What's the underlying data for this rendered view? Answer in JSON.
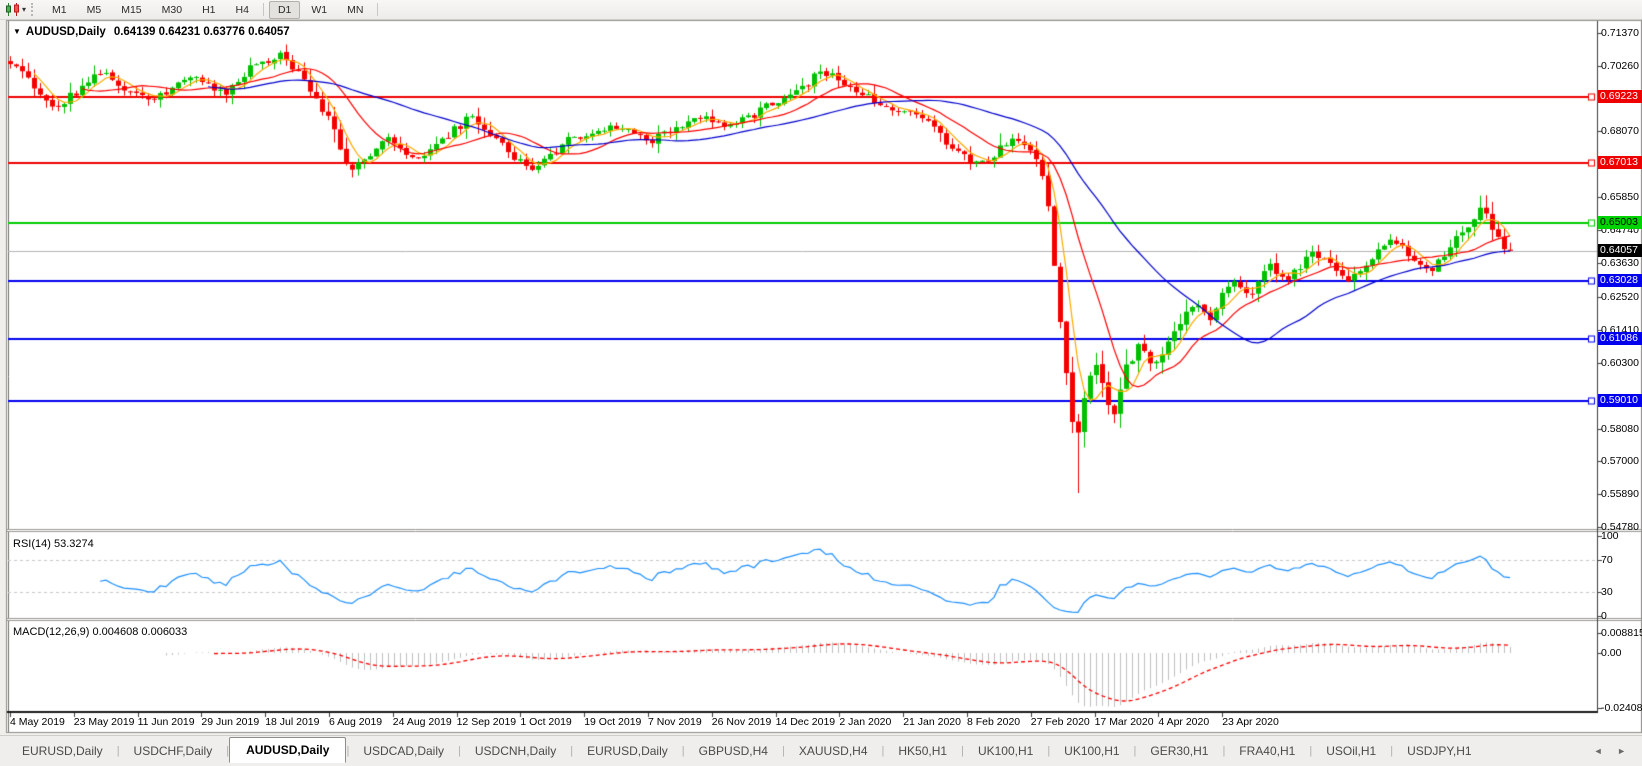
{
  "toolbar": {
    "timeframes": [
      "M1",
      "M5",
      "M15",
      "M30",
      "H1",
      "H4",
      "D1",
      "W1",
      "MN"
    ],
    "active_timeframe": "D1",
    "chart_type_icon": "candlestick-chart-icon"
  },
  "chart": {
    "title": "AUDUSD,Daily",
    "ohlc": "0.64139 0.64231 0.63776 0.64057",
    "menu_caret": "▼"
  },
  "rsi": {
    "label": "RSI(14) 53.3274",
    "axis": [
      "100",
      "70",
      "30",
      "0"
    ]
  },
  "macd": {
    "label": "MACD(12,26,9) 0.004608 0.006033",
    "axis_top": "0.008815",
    "axis_zero": "0.00",
    "axis_bottom": "-0.024082"
  },
  "price_axis": {
    "ticks": [
      "0.71370",
      "0.70260",
      "0.68070",
      "0.65850",
      "0.64740",
      "0.63630",
      "0.62520",
      "0.61410",
      "0.60300",
      "0.58080",
      "0.57000",
      "0.55890",
      "0.54780"
    ],
    "badges": [
      {
        "label": "0.69223",
        "bg": "#ee0000",
        "fg": "#ffffff"
      },
      {
        "label": "0.67013",
        "bg": "#ee0000",
        "fg": "#ffffff"
      },
      {
        "label": "0.65003",
        "bg": "#00d400",
        "fg": "#000000"
      },
      {
        "label": "0.64057",
        "bg": "#000000",
        "fg": "#ffffff"
      },
      {
        "label": "0.63028",
        "bg": "#0000ee",
        "fg": "#ffffff"
      },
      {
        "label": "0.61086",
        "bg": "#0000ee",
        "fg": "#ffffff"
      },
      {
        "label": "0.59010",
        "bg": "#0000ee",
        "fg": "#ffffff"
      }
    ]
  },
  "time_axis": {
    "dates": [
      "4 May 2019",
      "23 May 2019",
      "11 Jun 2019",
      "29 Jun 2019",
      "18 Jul 2019",
      "6 Aug 2019",
      "24 Aug 2019",
      "12 Sep 2019",
      "1 Oct 2019",
      "19 Oct 2019",
      "7 Nov 2019",
      "26 Nov 2019",
      "14 Dec 2019",
      "2 Jan 2020",
      "21 Jan 2020",
      "8 Feb 2020",
      "27 Feb 2020",
      "17 Mar 2020",
      "4 Apr 2020",
      "23 Apr 2020"
    ]
  },
  "tabs": {
    "items": [
      "EURUSD,Daily",
      "USDCHF,Daily",
      "AUDUSD,Daily",
      "USDCAD,Daily",
      "USDCNH,Daily",
      "EURUSD,Daily",
      "GBPUSD,H4",
      "XAUUSD,H4",
      "HK50,H1",
      "UK100,H1",
      "UK100,H1",
      "GER30,H1",
      "FRA40,H1",
      "USOil,H1",
      "USDJPY,H1"
    ],
    "active_index": 2,
    "scroll_arrows": "◄ ►"
  },
  "chart_data": {
    "type": "candlestick",
    "symbol": "AUDUSD",
    "timeframe": "Daily",
    "ohlc_display": {
      "open": "0.64139",
      "high": "0.64231",
      "low": "0.63776",
      "close": "0.64057"
    },
    "price_axis_top": 0.7137,
    "price_axis_bottom": 0.5478,
    "num_candles": 251,
    "close_anchors": [
      [
        0.0,
        0.704
      ],
      [
        0.015,
        0.696
      ],
      [
        0.03,
        0.689
      ],
      [
        0.045,
        0.694
      ],
      [
        0.06,
        0.7005
      ],
      [
        0.075,
        0.695
      ],
      [
        0.093,
        0.6905
      ],
      [
        0.108,
        0.695
      ],
      [
        0.123,
        0.7
      ],
      [
        0.143,
        0.693
      ],
      [
        0.163,
        0.7035
      ],
      [
        0.18,
        0.706
      ],
      [
        0.193,
        0.7005
      ],
      [
        0.213,
        0.6845
      ],
      [
        0.227,
        0.6665
      ],
      [
        0.24,
        0.673
      ],
      [
        0.253,
        0.678
      ],
      [
        0.267,
        0.672
      ],
      [
        0.28,
        0.674
      ],
      [
        0.293,
        0.68
      ],
      [
        0.307,
        0.6855
      ],
      [
        0.327,
        0.676
      ],
      [
        0.347,
        0.6672
      ],
      [
        0.36,
        0.672
      ],
      [
        0.373,
        0.678
      ],
      [
        0.39,
        0.681
      ],
      [
        0.407,
        0.683
      ],
      [
        0.427,
        0.6775
      ],
      [
        0.443,
        0.682
      ],
      [
        0.46,
        0.686
      ],
      [
        0.48,
        0.682
      ],
      [
        0.495,
        0.686
      ],
      [
        0.507,
        0.69
      ],
      [
        0.527,
        0.6945
      ],
      [
        0.54,
        0.7015
      ],
      [
        0.56,
        0.6955
      ],
      [
        0.58,
        0.69
      ],
      [
        0.6,
        0.6868
      ],
      [
        0.613,
        0.683
      ],
      [
        0.627,
        0.676
      ],
      [
        0.64,
        0.6712
      ],
      [
        0.653,
        0.67
      ],
      [
        0.667,
        0.679
      ],
      [
        0.68,
        0.6755
      ],
      [
        0.69,
        0.664
      ],
      [
        0.697,
        0.63
      ],
      [
        0.703,
        0.603
      ],
      [
        0.71,
        0.575
      ],
      [
        0.717,
        0.595
      ],
      [
        0.723,
        0.606
      ],
      [
        0.73,
        0.59
      ],
      [
        0.737,
        0.584
      ],
      [
        0.743,
        0.6
      ],
      [
        0.753,
        0.609
      ],
      [
        0.763,
        0.601
      ],
      [
        0.773,
        0.612
      ],
      [
        0.787,
        0.623
      ],
      [
        0.8,
        0.618
      ],
      [
        0.813,
        0.63
      ],
      [
        0.827,
        0.626
      ],
      [
        0.84,
        0.635
      ],
      [
        0.853,
        0.631
      ],
      [
        0.867,
        0.64
      ],
      [
        0.88,
        0.636
      ],
      [
        0.893,
        0.63
      ],
      [
        0.907,
        0.638
      ],
      [
        0.92,
        0.644
      ],
      [
        0.933,
        0.639
      ],
      [
        0.947,
        0.634
      ],
      [
        0.96,
        0.642
      ],
      [
        0.973,
        0.65
      ],
      [
        0.983,
        0.656
      ],
      [
        0.99,
        0.645
      ],
      [
        1.0,
        0.6406
      ]
    ],
    "crash_low": {
      "f": 0.71,
      "price": 0.5592
    },
    "current_price": 0.64057,
    "horizontal_lines": [
      {
        "price": 0.69223,
        "color": "#ee0000",
        "width": 2
      },
      {
        "price": 0.67013,
        "color": "#ee0000",
        "width": 2
      },
      {
        "price": 0.65003,
        "color": "#00cc00",
        "width": 2
      },
      {
        "price": 0.63028,
        "color": "#0000ee",
        "width": 2
      },
      {
        "price": 0.61086,
        "color": "#0000ee",
        "width": 2
      },
      {
        "price": 0.5901,
        "color": "#0000ee",
        "width": 2
      }
    ],
    "moving_averages": [
      {
        "period": 5,
        "color": "#ffaa00"
      },
      {
        "period": 13,
        "color": "#ff0000"
      },
      {
        "period": 34,
        "color": "#0000cd"
      }
    ],
    "candle_up_color": "#00c000",
    "candle_down_color": "#f40000",
    "indicators": [
      {
        "name": "RSI",
        "period": 14,
        "value": 53.3274,
        "levels": [
          70,
          30
        ],
        "color": "#1e90ff"
      },
      {
        "name": "MACD",
        "params": [
          12,
          26,
          9
        ],
        "macd_value": 0.004608,
        "signal_value": 0.006033,
        "histogram_color": "#c0c0c0",
        "signal_color": "#ff0000"
      }
    ]
  }
}
